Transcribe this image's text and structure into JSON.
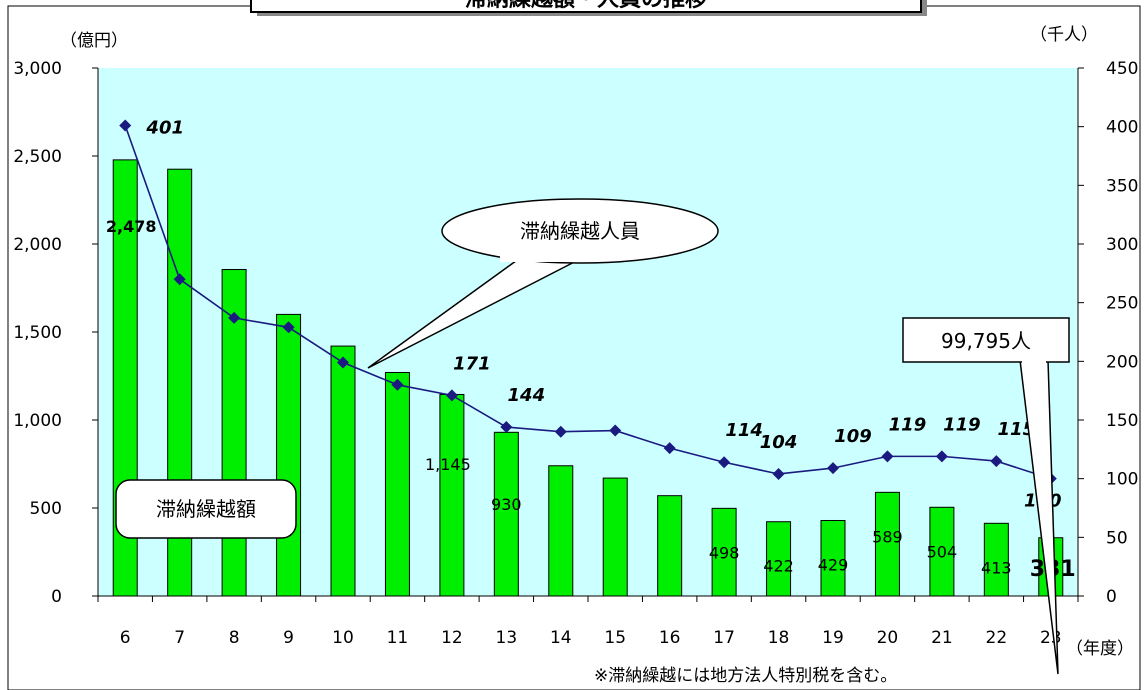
{
  "chart_data": {
    "type": "bar+line",
    "title": "滞納繰越額・人員の推移",
    "categories": [
      "6",
      "7",
      "8",
      "9",
      "10",
      "11",
      "12",
      "13",
      "14",
      "15",
      "16",
      "17",
      "18",
      "19",
      "20",
      "21",
      "22",
      "23"
    ],
    "xlabel": "（年度）",
    "y_left": {
      "unit_label": "（億円）",
      "range": [
        0,
        3000
      ],
      "ticks": [
        "0",
        "500",
        "1,000",
        "1,500",
        "2,000",
        "2,500",
        "3,000"
      ]
    },
    "y_right": {
      "unit_label": "（千人）",
      "range": [
        0,
        450
      ],
      "ticks": [
        "0",
        "50",
        "100",
        "150",
        "200",
        "250",
        "300",
        "350",
        "400",
        "450"
      ]
    },
    "series": [
      {
        "name": "滞納繰越額",
        "type": "bar",
        "axis": "left",
        "color": "#00ee00",
        "values": [
          2478,
          2425,
          1855,
          1600,
          1420,
          1270,
          1145,
          930,
          740,
          670,
          570,
          498,
          422,
          429,
          589,
          504,
          413,
          331
        ],
        "labels": [
          "2,478",
          "",
          "",
          "",
          "",
          "",
          "1,145",
          "930",
          "",
          "",
          "",
          "498",
          "422",
          "429",
          "589",
          "504",
          "413",
          "331"
        ]
      },
      {
        "name": "滞納繰越人員",
        "type": "line",
        "axis": "right",
        "color": "#1a1a80",
        "values": [
          401,
          270,
          237,
          229,
          199,
          180,
          171,
          144,
          140,
          141,
          126,
          114,
          104,
          109,
          119,
          119,
          115,
          100
        ],
        "labels": [
          "401",
          "",
          "",
          "",
          "",
          "",
          "171",
          "144",
          "",
          "",
          "",
          "114",
          "104",
          "109",
          "119",
          "119",
          "115",
          "100"
        ]
      }
    ],
    "callouts": {
      "people": "滞納繰越人員",
      "amount": "滞納繰越額",
      "last_people": "99,795人"
    },
    "footnote": "※滞納繰越には地方法人特別税を含む。",
    "plot_background": "#ccffff",
    "grid": false
  }
}
